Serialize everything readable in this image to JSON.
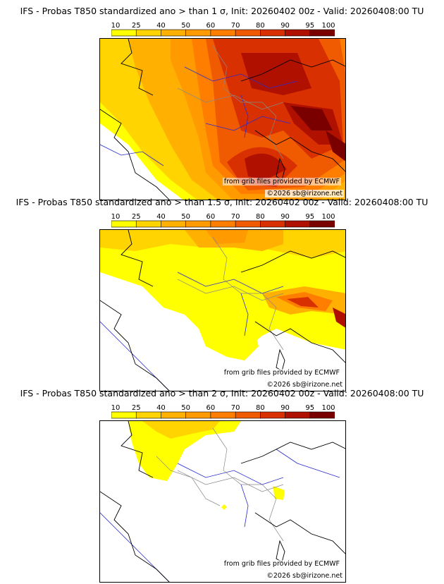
{
  "colorbar": {
    "ticks": [
      "10",
      "25",
      "40",
      "50",
      "60",
      "70",
      "80",
      "90",
      "95",
      "100"
    ],
    "colors": [
      "#ffff00",
      "#ffd400",
      "#ffb000",
      "#ff9a00",
      "#ff7e00",
      "#f05a00",
      "#d83000",
      "#b01000",
      "#7a0000"
    ]
  },
  "palette": {
    "land_lines": "#888888",
    "rivers": "#2a2ad0",
    "coast": "#000000"
  },
  "panels": [
    {
      "title": "IFS - Probas T850  standardized ano > than 1 σ, Init: 20260402 00z - Valid: 20260408:00 TU",
      "credit_source": "from grib files provided by ECMWF",
      "credit_author": "©2026 sb@irizone.net"
    },
    {
      "title": "IFS - Probas T850  standardized ano > than 1.5 σ, Init: 20260402 00z - Valid: 20260408:00 TU",
      "credit_source": "from grib files provided by ECMWF",
      "credit_author": "©2026 sb@irizone.net"
    },
    {
      "title": "IFS - Probas T850  standardized ano > than 2 σ, Init: 20260402 00z - Valid: 20260408:00 TU",
      "credit_source": "from grib files provided by ECMWF",
      "credit_author": "©2026 sb@irizone.net"
    }
  ]
}
